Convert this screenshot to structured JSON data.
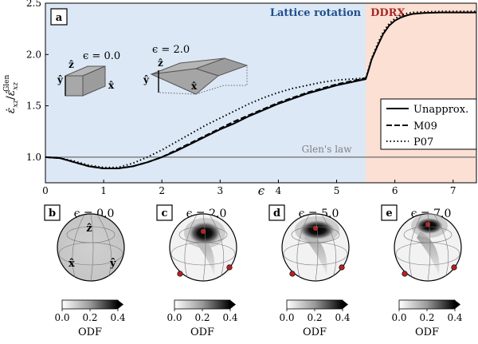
{
  "chart_data": [
    {
      "type": "line",
      "panel_label": "a",
      "xlabel": "ϵ",
      "ylabel_main": "ε̇",
      "ylabel_main_sub": "xz",
      "ylabel_div": "/",
      "ylabel_ref": "ε̇",
      "ylabel_ref_sub": "xz",
      "ylabel_ref_sup": "Glen",
      "xlim": [
        0,
        7.4
      ],
      "ylim": [
        0.75,
        2.5
      ],
      "xticks": [
        "0",
        "1",
        "2",
        "3",
        "4",
        "5",
        "6",
        "7"
      ],
      "yticks": [
        "1.0",
        "1.5",
        "2.0",
        "2.5"
      ],
      "region_split": 5.5,
      "regions": [
        {
          "name": "Lattice rotation",
          "color": "#dce8f5",
          "text_color": "#1f4e8c"
        },
        {
          "name": "DDRX",
          "color": "#fbe0d3",
          "text_color": "#a52a2a"
        }
      ],
      "reference_line": {
        "label": "Glen's law",
        "y": 1.0,
        "color": "#808080"
      },
      "inset_labels": {
        "left_title": "ϵ = 0.0",
        "right_title": "ϵ = 2.0",
        "z": "ẑ",
        "y": "ŷ",
        "x": "x̂"
      },
      "legend_position": "lower-right",
      "series": [
        {
          "name": "Unapprox.",
          "style": "solid",
          "x": [
            0,
            0.25,
            0.5,
            0.75,
            1.0,
            1.25,
            1.5,
            1.75,
            2.0,
            2.25,
            2.5,
            2.75,
            3.0,
            3.25,
            3.5,
            3.75,
            4.0,
            4.25,
            4.5,
            4.75,
            5.0,
            5.25,
            5.5,
            5.55,
            5.6,
            5.7,
            5.8,
            5.9,
            6.0,
            6.1,
            6.2,
            6.3,
            6.5,
            6.8,
            7.0,
            7.4
          ],
          "values": [
            1.0,
            0.99,
            0.95,
            0.91,
            0.89,
            0.89,
            0.91,
            0.95,
            1.0,
            1.06,
            1.13,
            1.2,
            1.27,
            1.33,
            1.4,
            1.46,
            1.52,
            1.57,
            1.62,
            1.66,
            1.7,
            1.73,
            1.76,
            1.85,
            1.95,
            2.08,
            2.2,
            2.28,
            2.33,
            2.36,
            2.38,
            2.395,
            2.405,
            2.41,
            2.41,
            2.41
          ]
        },
        {
          "name": "M09",
          "style": "dashed",
          "x": [
            0,
            0.25,
            0.5,
            0.75,
            1.0,
            1.25,
            1.5,
            1.75,
            2.0,
            2.25,
            2.5,
            2.75,
            3.0,
            3.25,
            3.5,
            3.75,
            4.0,
            4.25,
            4.5,
            4.75,
            5.0,
            5.25,
            5.5
          ],
          "values": [
            1.0,
            0.99,
            0.95,
            0.91,
            0.89,
            0.89,
            0.91,
            0.95,
            1.0,
            1.07,
            1.14,
            1.21,
            1.28,
            1.35,
            1.41,
            1.47,
            1.53,
            1.58,
            1.63,
            1.67,
            1.71,
            1.74,
            1.77
          ]
        },
        {
          "name": "P07",
          "style": "dotted",
          "x": [
            0,
            0.25,
            0.5,
            0.75,
            1.0,
            1.25,
            1.5,
            1.75,
            2.0,
            2.25,
            2.5,
            2.75,
            3.0,
            3.25,
            3.5,
            3.75,
            4.0,
            4.25,
            4.5,
            4.75,
            5.0,
            5.25,
            5.5,
            5.55,
            5.6,
            5.7,
            5.8,
            5.9,
            6.0,
            6.1,
            6.2,
            6.3,
            6.5,
            6.8,
            7.0,
            7.4
          ],
          "values": [
            1.0,
            0.99,
            0.96,
            0.92,
            0.9,
            0.9,
            0.94,
            1.0,
            1.07,
            1.15,
            1.23,
            1.31,
            1.38,
            1.45,
            1.52,
            1.58,
            1.63,
            1.67,
            1.7,
            1.73,
            1.75,
            1.76,
            1.77,
            1.86,
            1.96,
            2.1,
            2.22,
            2.3,
            2.35,
            2.38,
            2.4,
            2.41,
            2.415,
            2.42,
            2.42,
            2.42
          ]
        }
      ]
    },
    {
      "type": "heatmap",
      "panels": [
        {
          "label": "b",
          "title": "ϵ = 0.0",
          "axes": {
            "z": "ẑ",
            "x": "x̂",
            "y": "ŷ"
          },
          "colorbar_label": "",
          "colorbar_ticks": []
        },
        {
          "label": "c",
          "title": "ϵ = 2.0",
          "colorbar_label": "ODF",
          "colorbar_ticks": [
            "0.0",
            "0.2",
            "0.4"
          ]
        },
        {
          "label": "d",
          "title": "ϵ = 5.0",
          "colorbar_label": "ODF",
          "colorbar_ticks": [
            "0.0",
            "0.2",
            "0.4"
          ]
        },
        {
          "label": "e",
          "title": "ϵ = 7.0",
          "colorbar_label": "ODF",
          "colorbar_ticks": [
            "0.0",
            "0.2",
            "0.4"
          ]
        }
      ],
      "first_panel_colorbar": {
        "label": "ODF",
        "ticks": [
          "0.0",
          "0.2",
          "0.4"
        ]
      },
      "marker_color": "#b22222"
    }
  ]
}
